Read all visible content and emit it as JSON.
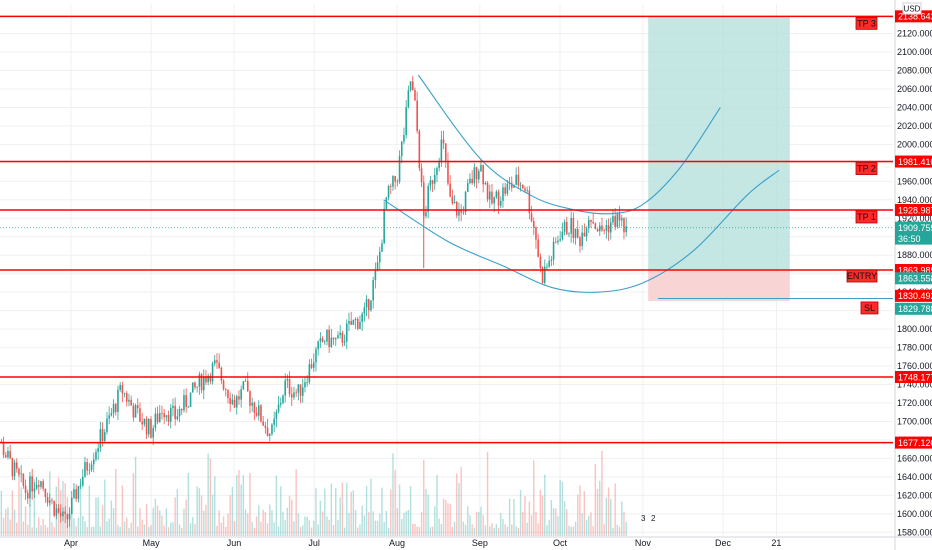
{
  "chart_data": {
    "type": "candlestick",
    "currency": "USD",
    "x_labels": [
      "Apr",
      "May",
      "Jun",
      "Jul",
      "Aug",
      "Sep",
      "Oct",
      "Nov",
      "Dec",
      "21"
    ],
    "y_ticks": [
      "1580.000",
      "1600.000",
      "1620.000",
      "1640.000",
      "1660.000",
      "1680.000",
      "1700.000",
      "1720.000",
      "1740.000",
      "1760.000",
      "1780.000",
      "1800.000",
      "1820.000",
      "1840.000",
      "1860.000",
      "1880.000",
      "1900.000",
      "1920.000",
      "1940.000",
      "1960.000",
      "1980.000",
      "2000.000",
      "2020.000",
      "2040.000",
      "2060.000",
      "2080.000",
      "2100.000",
      "2120.000"
    ],
    "ylim": [
      1576,
      2152
    ],
    "price_path": [
      {
        "t": "Mar 1",
        "p": 1705
      },
      {
        "t": "Mar 5",
        "p": 1680
      },
      {
        "t": "Mar 10",
        "p": 1650
      },
      {
        "t": "Mar 15",
        "p": 1625
      },
      {
        "t": "Mar 20",
        "p": 1640
      },
      {
        "t": "Mar 25",
        "p": 1610
      },
      {
        "t": "Mar 30",
        "p": 1590
      },
      {
        "t": "Apr 5",
        "p": 1640
      },
      {
        "t": "Apr 10",
        "p": 1670
      },
      {
        "t": "Apr 15",
        "p": 1700
      },
      {
        "t": "Apr 20",
        "p": 1735
      },
      {
        "t": "Apr 25",
        "p": 1710
      },
      {
        "t": "May 1",
        "p": 1690
      },
      {
        "t": "May 5",
        "p": 1715
      },
      {
        "t": "May 10",
        "p": 1705
      },
      {
        "t": "May 15",
        "p": 1725
      },
      {
        "t": "May 20",
        "p": 1745
      },
      {
        "t": "May 25",
        "p": 1760
      },
      {
        "t": "Jun 1",
        "p": 1720
      },
      {
        "t": "Jun 5",
        "p": 1735
      },
      {
        "t": "Jun 10",
        "p": 1710
      },
      {
        "t": "Jun 15",
        "p": 1685
      },
      {
        "t": "Jun 20",
        "p": 1740
      },
      {
        "t": "Jun 25",
        "p": 1730
      },
      {
        "t": "Jul 1",
        "p": 1770
      },
      {
        "t": "Jul 5",
        "p": 1790
      },
      {
        "t": "Jul 10",
        "p": 1785
      },
      {
        "t": "Jul 15",
        "p": 1805
      },
      {
        "t": "Jul 20",
        "p": 1815
      },
      {
        "t": "Jul 25",
        "p": 1870
      },
      {
        "t": "Jul 28",
        "p": 1940
      },
      {
        "t": "Aug 1",
        "p": 1965
      },
      {
        "t": "Aug 4",
        "p": 2020
      },
      {
        "t": "Aug 6",
        "p": 2070
      },
      {
        "t": "Aug 8",
        "p": 2035
      },
      {
        "t": "Aug 11",
        "p": 1920
      },
      {
        "t": "Aug 13",
        "p": 1950
      },
      {
        "t": "Aug 18",
        "p": 2005
      },
      {
        "t": "Aug 21",
        "p": 1935
      },
      {
        "t": "Aug 25",
        "p": 1925
      },
      {
        "t": "Aug 28",
        "p": 1955
      },
      {
        "t": "Sep 1",
        "p": 1980
      },
      {
        "t": "Sep 5",
        "p": 1935
      },
      {
        "t": "Sep 10",
        "p": 1950
      },
      {
        "t": "Sep 15",
        "p": 1960
      },
      {
        "t": "Sep 18",
        "p": 1955
      },
      {
        "t": "Sep 22",
        "p": 1900
      },
      {
        "t": "Sep 24",
        "p": 1855
      },
      {
        "t": "Sep 28",
        "p": 1880
      },
      {
        "t": "Oct 1",
        "p": 1905
      },
      {
        "t": "Oct 5",
        "p": 1912
      },
      {
        "t": "Oct 8",
        "p": 1895
      },
      {
        "t": "Oct 12",
        "p": 1925
      },
      {
        "t": "Oct 16",
        "p": 1905
      },
      {
        "t": "Oct 20",
        "p": 1915
      },
      {
        "t": "Oct 23",
        "p": 1920
      },
      {
        "t": "Oct 26",
        "p": 1905
      }
    ],
    "levels": [
      {
        "name": "TP 3",
        "value": 2138.642,
        "label": "2138.642"
      },
      {
        "name": "TP 2",
        "value": 1981.41,
        "label": "1981.410"
      },
      {
        "name": "TP 1",
        "value": 1928.987,
        "label": "1928.987"
      },
      {
        "name": "ENTRY",
        "value": 1863.989,
        "label": "1863.989"
      },
      {
        "name": "",
        "value": 1748.177,
        "label": "1748.177"
      },
      {
        "name": "",
        "value": 1677.12,
        "label": "1677.120"
      }
    ],
    "other_price_labels": [
      {
        "value": 1909.759,
        "label": "1909.759",
        "color": "#26a69a"
      },
      {
        "value": 1898.0,
        "label": "36:50",
        "color": "#26a69a"
      },
      {
        "value": 1855.0,
        "label": "1863.558",
        "color": "#26a69a"
      },
      {
        "value": 1836.0,
        "label": "1830.492",
        "color": "#ff0000"
      },
      {
        "value": 1822.0,
        "label": "1829.788",
        "color": "#26a69a"
      }
    ],
    "sl_tag": {
      "name": "SL",
      "value": 1830.492
    },
    "position": {
      "entry": 1863.989,
      "target": 2138.642,
      "stop": 1830.492,
      "start": "Nov 3",
      "end": "Dec 26",
      "profit_color": "#b2dfdb",
      "loss_color": "#f8cfd0"
    },
    "arcs": [
      {
        "points": [
          [
            "Aug 9",
            2075
          ],
          [
            "Sep 1",
            1985
          ],
          [
            "Sep 20",
            1945
          ],
          [
            "Oct 5",
            1930
          ],
          [
            "Oct 20",
            1925
          ],
          [
            "Nov 1",
            1935
          ],
          [
            "Nov 15",
            1975
          ],
          [
            "Nov 30",
            2040
          ]
        ]
      },
      {
        "points": [
          [
            "Jul 27",
            1940
          ],
          [
            "Aug 20",
            1895
          ],
          [
            "Sep 10",
            1868
          ],
          [
            "Sep 28",
            1845
          ],
          [
            "Oct 15",
            1840
          ],
          [
            "Nov 1",
            1850
          ],
          [
            "Nov 20",
            1885
          ],
          [
            "Dec 10",
            1945
          ],
          [
            "Dec 22",
            1972
          ]
        ]
      }
    ],
    "colors": {
      "up": "#26a69a",
      "down": "#ef5350",
      "level": "#ff0000",
      "arc": "#3aa0c8"
    },
    "volume_badges": [
      "3",
      "2"
    ]
  }
}
